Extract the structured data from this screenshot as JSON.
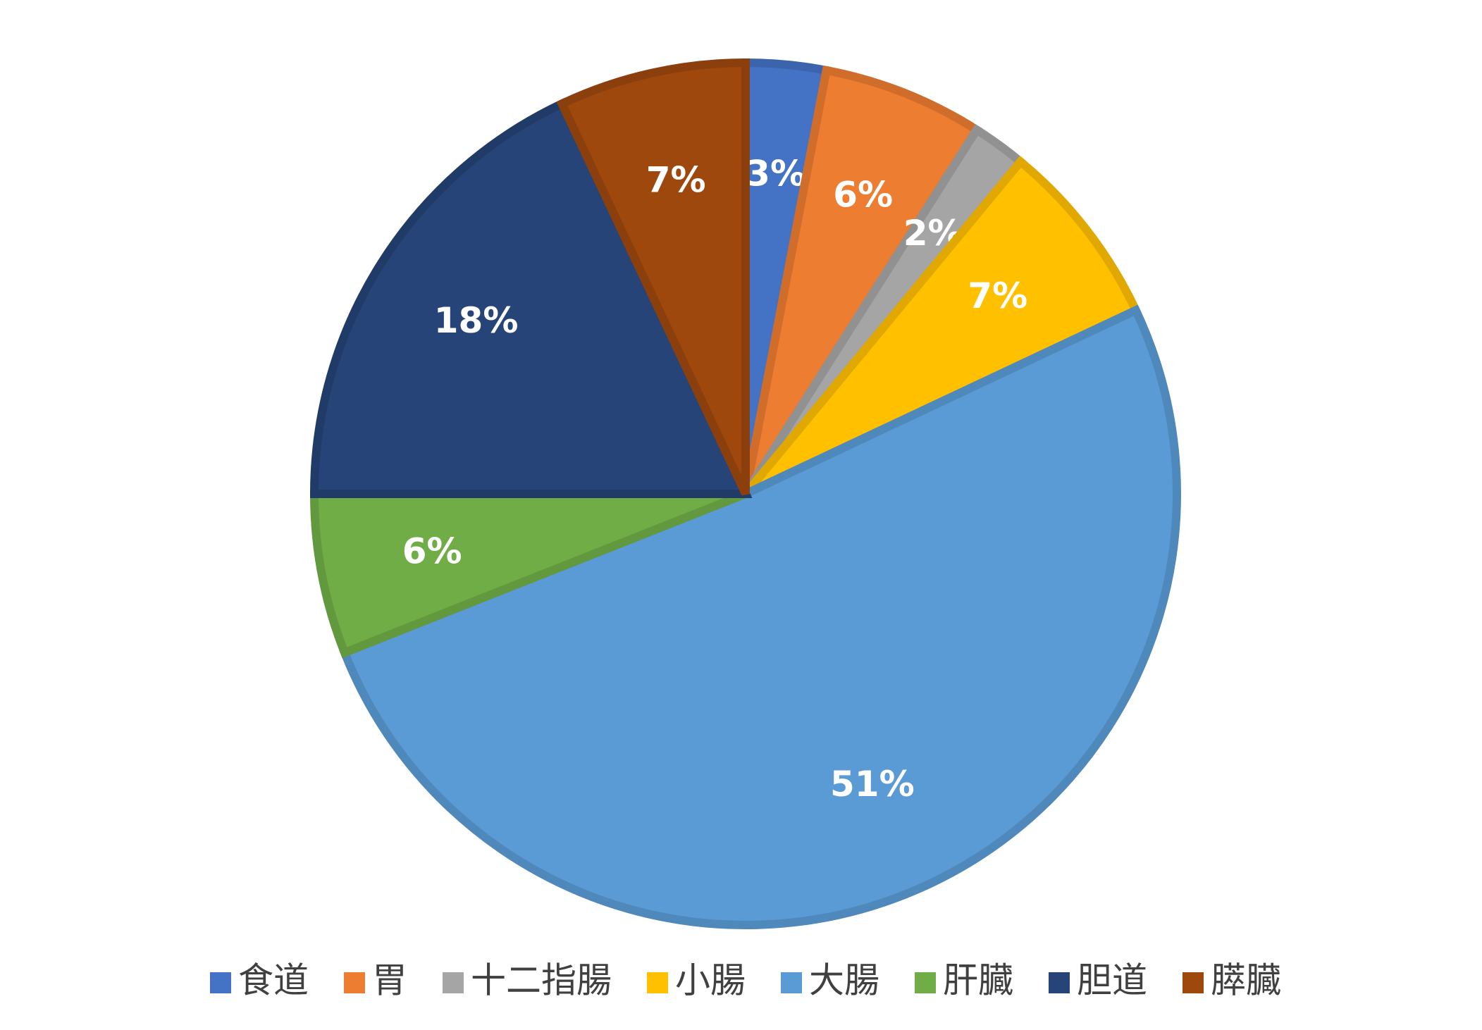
{
  "chart_data": {
    "type": "pie",
    "categories": [
      "食道",
      "胃",
      "十二指腸",
      "小腸",
      "大腸",
      "肝臓",
      "胆道",
      "膵臓"
    ],
    "values": [
      3,
      6,
      2,
      7,
      51,
      6,
      18,
      7
    ],
    "value_labels": [
      "3%",
      "6%",
      "2%",
      "7%",
      "51%",
      "6%",
      "18%",
      "7%"
    ],
    "colors": [
      "#4472c4",
      "#ed7d31",
      "#a5a5a5",
      "#ffc000",
      "#5b9bd5",
      "#70ad47",
      "#264478",
      "#9e480e"
    ],
    "legend": "bottom"
  }
}
